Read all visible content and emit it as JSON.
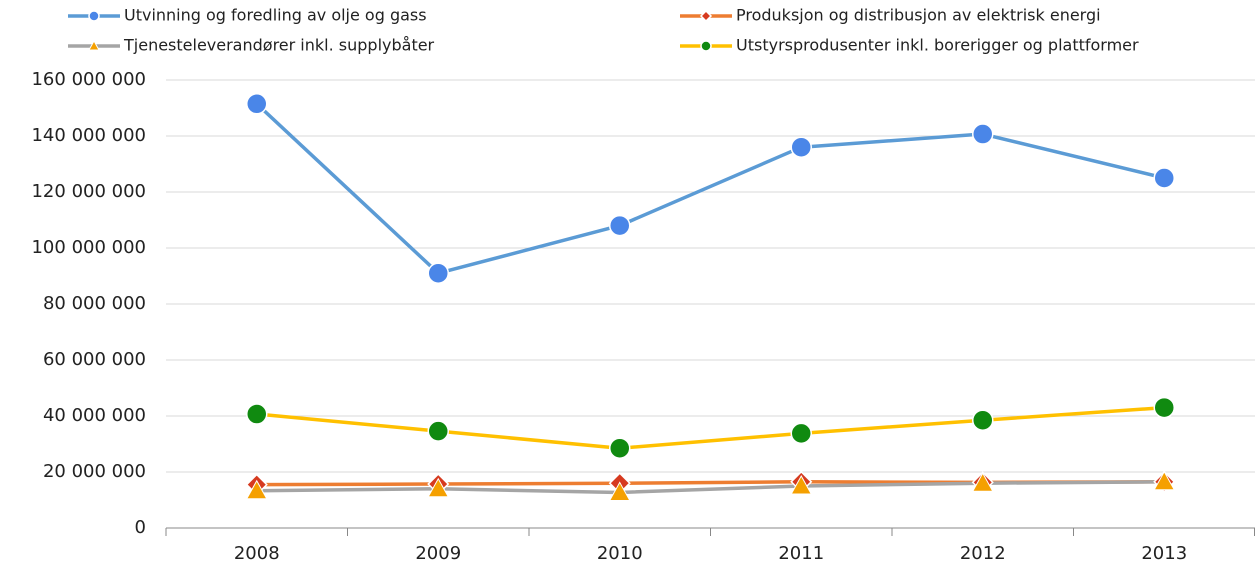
{
  "chart_data": {
    "type": "line",
    "categories": [
      "2008",
      "2009",
      "2010",
      "2011",
      "2012",
      "2013"
    ],
    "series": [
      {
        "name": "Utvinning og foredling av olje og gass",
        "color": "#5b9bd5",
        "marker": "circle",
        "marker_color": "#4a86e8",
        "values": [
          151500000,
          91000000,
          108000000,
          136000000,
          140700000,
          125000000
        ]
      },
      {
        "name": "Produksjon og distribusjon av elektrisk energi",
        "color": "#ed7d31",
        "marker": "diamond",
        "marker_color": "#d63a1f",
        "values": [
          15500000,
          15700000,
          16000000,
          16500000,
          16300000,
          16500000
        ]
      },
      {
        "name": "Tjenesteleverandører inkl. supplybåter",
        "color": "#a5a5a5",
        "marker": "triangle",
        "marker_color": "#f5a000",
        "values": [
          13300000,
          14000000,
          12700000,
          15000000,
          16000000,
          16500000
        ]
      },
      {
        "name": "Utstyrsprodusenter inkl. borerigger og plattformer",
        "color": "#ffc000",
        "marker": "circle",
        "marker_color": "#108a10",
        "values": [
          40700000,
          34600000,
          28500000,
          33800000,
          38500000,
          43000000
        ]
      }
    ],
    "ylim": [
      0,
      160000000
    ],
    "yticks": [
      0,
      {
        "value": 20000000,
        "label": "20 000 000"
      },
      {
        "value": 40000000,
        "label": "40 000 000"
      },
      {
        "value": 60000000,
        "label": "60 000 000"
      },
      {
        "value": 80000000,
        "label": "80 000 000"
      },
      {
        "value": 100000000,
        "label": "100 000 000"
      },
      {
        "value": 120000000,
        "label": "120 000 000"
      },
      {
        "value": 140000000,
        "label": "140 000 000"
      },
      {
        "value": 160000000,
        "label": "160 000 000"
      }
    ],
    "grid": true,
    "legend": "top"
  }
}
